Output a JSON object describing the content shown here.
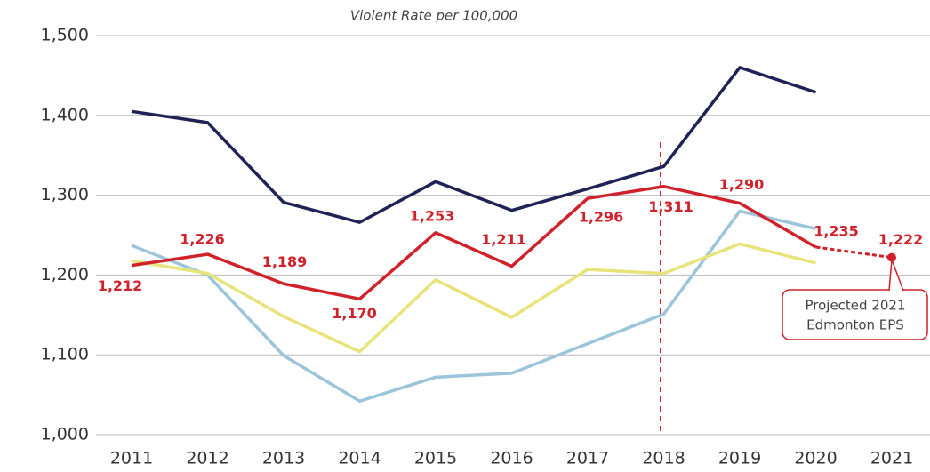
{
  "chart_data": {
    "type": "line",
    "title": "Violent Rate per 100,000",
    "categories": [
      "2011",
      "2012",
      "2013",
      "2014",
      "2015",
      "2016",
      "2017",
      "2018",
      "2019",
      "2020",
      "2021"
    ],
    "ylim": [
      1000,
      1500
    ],
    "yticks": [
      {
        "value": 1000,
        "label": "1,000"
      },
      {
        "value": 1100,
        "label": "1,100"
      },
      {
        "value": 1200,
        "label": "1,200"
      },
      {
        "value": 1300,
        "label": "1,300"
      },
      {
        "value": 1400,
        "label": "1,400"
      },
      {
        "value": 1500,
        "label": "1,500"
      }
    ],
    "grid": true,
    "vline_category": "2018",
    "series": [
      {
        "color": "#1f2355",
        "values": [
          1405,
          1391,
          1291,
          1266,
          1317,
          1281,
          1308,
          1336,
          1460,
          1429,
          null
        ]
      },
      {
        "color": "#9cc5dc",
        "values": [
          1237,
          1200,
          1099,
          1042,
          1072,
          1077,
          1114,
          1151,
          1280,
          1258,
          null
        ]
      },
      {
        "color": "#e6e47a",
        "values": [
          1218,
          1202,
          1148,
          1104,
          1194,
          1147,
          1207,
          1202,
          1239,
          1215,
          null
        ]
      },
      {
        "color": "#d0222a",
        "values": [
          1212,
          1226,
          1189,
          1170,
          1253,
          1211,
          1296,
          1311,
          1290,
          1235,
          1222
        ],
        "value_labels": [
          "1,212",
          "1,226",
          "1,189",
          "1,170",
          "1,253",
          "1,211",
          "1,296",
          "1,311",
          "1,290",
          "1,235",
          "1,222"
        ],
        "dashed_after_index": 9
      }
    ],
    "annotation": [
      "Projected 2021",
      "Edmonton EPS"
    ]
  }
}
